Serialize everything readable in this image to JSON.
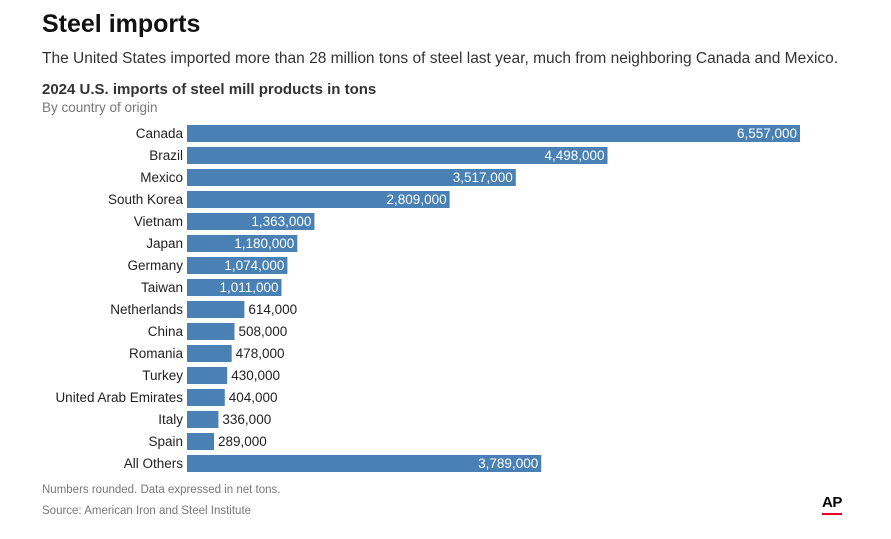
{
  "header": {
    "title": "Steel imports",
    "subtitle": "The United States imported more than 28 million tons of steel last year, much from neighboring Canada and Mexico."
  },
  "chart_data": {
    "type": "bar",
    "orientation": "horizontal",
    "title": "2024 U.S. imports of steel mill products in tons",
    "subtitle": "By country of origin",
    "categories": [
      "Canada",
      "Brazil",
      "Mexico",
      "South Korea",
      "Vietnam",
      "Japan",
      "Germany",
      "Taiwan",
      "Netherlands",
      "China",
      "Romania",
      "Turkey",
      "United Arab Emirates",
      "Italy",
      "Spain",
      "All Others"
    ],
    "values": [
      6557000,
      4498000,
      3517000,
      2809000,
      1363000,
      1180000,
      1074000,
      1011000,
      614000,
      508000,
      478000,
      430000,
      404000,
      336000,
      289000,
      3789000
    ],
    "value_labels": [
      "6,557,000",
      "4,498,000",
      "3,517,000",
      "2,809,000",
      "1,363,000",
      "1,180,000",
      "1,074,000",
      "1,011,000",
      "614,000",
      "508,000",
      "478,000",
      "430,000",
      "404,000",
      "336,000",
      "289,000",
      "3,789,000"
    ],
    "xlim": [
      0,
      6557000
    ],
    "xlabel": "",
    "ylabel": "",
    "grid": false,
    "bar_color": "#4a81b4"
  },
  "footer": {
    "note": "Numbers rounded. Data expressed in net tons.",
    "source": "Source: American Iron and Steel Institute",
    "logo_text": "AP",
    "logo_accent_color": "#e4002b"
  }
}
